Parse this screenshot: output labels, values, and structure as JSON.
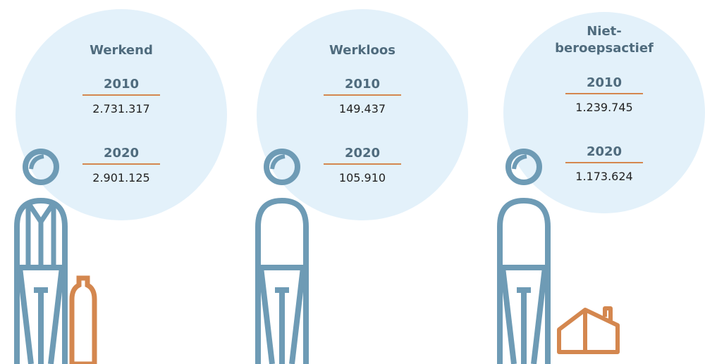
{
  "panels": [
    {
      "title": "Werkend",
      "rows": [
        {
          "year": "2010",
          "value": "2.731.317"
        },
        {
          "year": "2020",
          "value": "2.901.125"
        }
      ]
    },
    {
      "title": "Werkloos",
      "rows": [
        {
          "year": "2010",
          "value": "149.437"
        },
        {
          "year": "2020",
          "value": "105.910"
        }
      ]
    },
    {
      "title": "Niet-beroepsactief",
      "rows": [
        {
          "year": "2010",
          "value": "1.239.745"
        },
        {
          "year": "2020",
          "value": "1.173.624"
        }
      ]
    }
  ]
}
